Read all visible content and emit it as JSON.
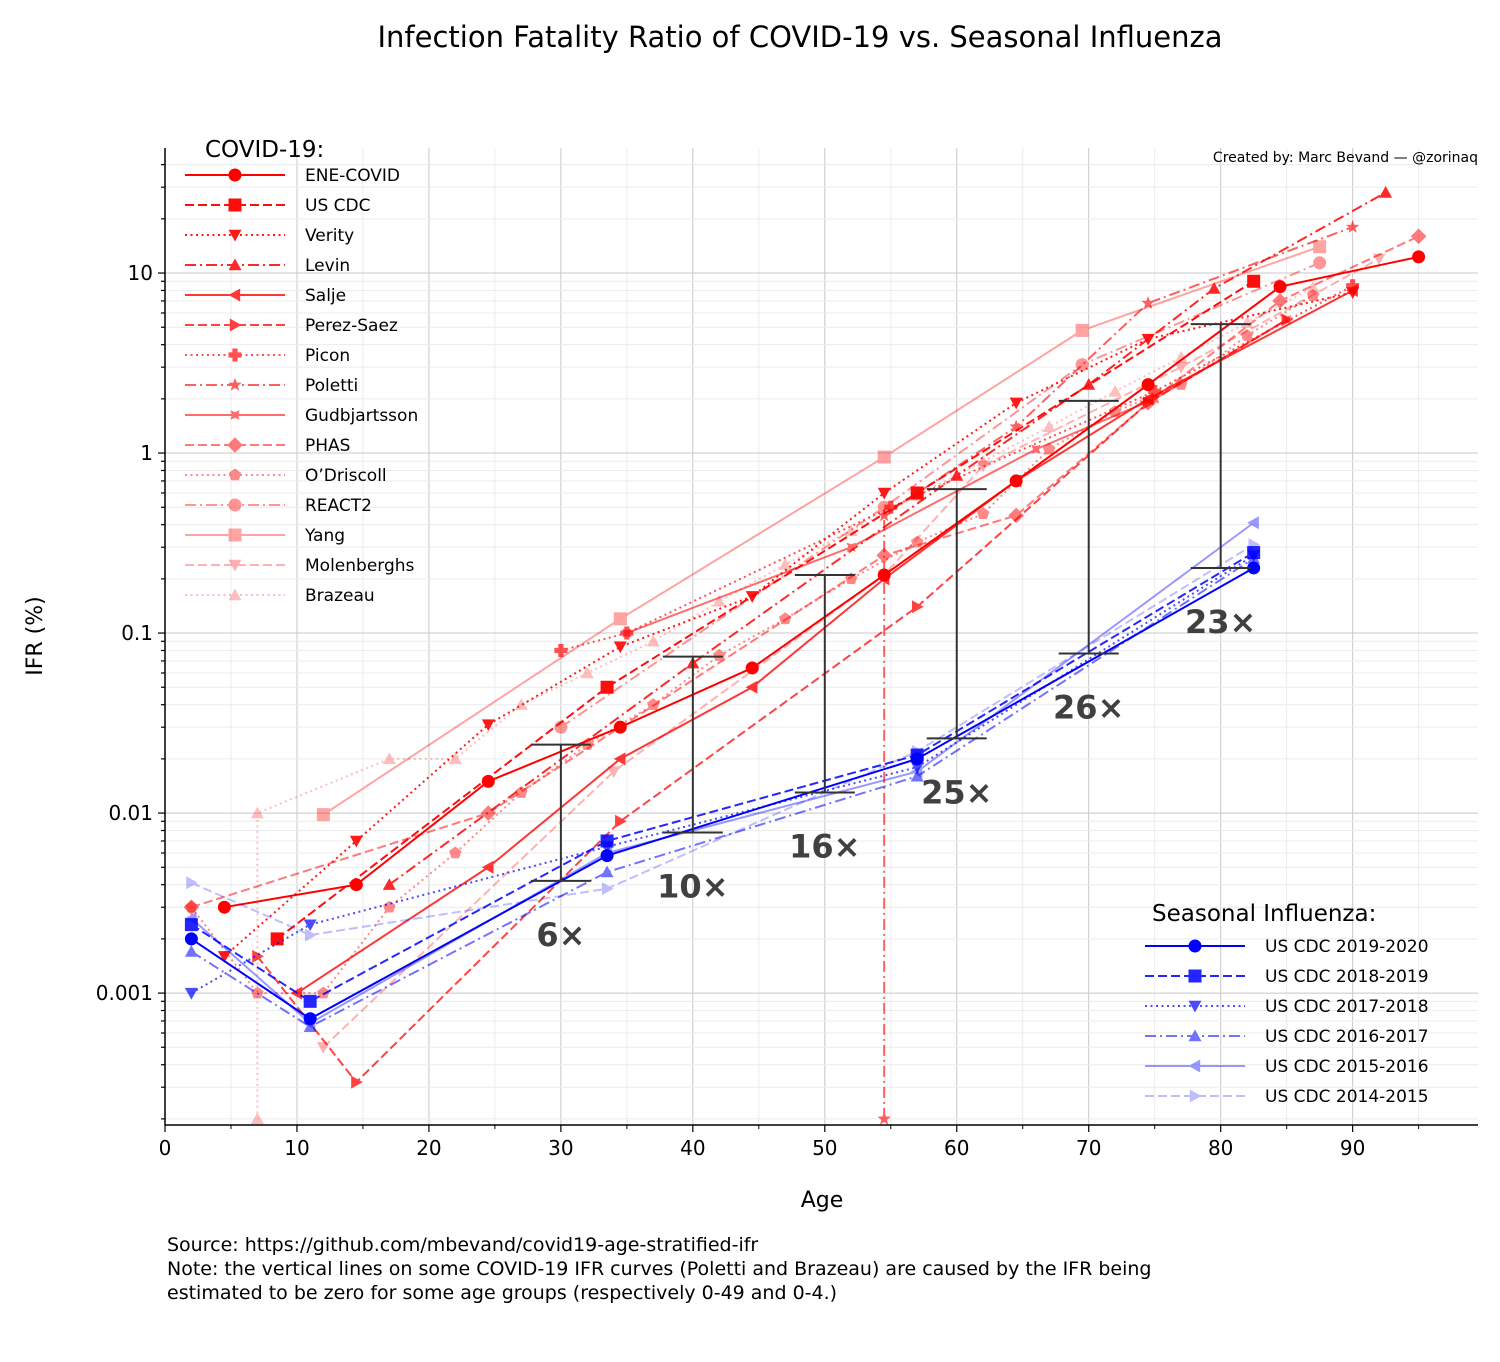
{
  "chart_data": {
    "type": "line",
    "title": "Infection Fatality Ratio of COVID-19 vs. Seasonal Influenza",
    "xlabel": "Age",
    "ylabel": "IFR (%)",
    "xlim": [
      0,
      99.5
    ],
    "ylim": [
      0.000185,
      49.5
    ],
    "yscale": "log",
    "xticks": [
      0,
      10,
      20,
      30,
      40,
      50,
      60,
      70,
      80,
      90
    ],
    "yticks": [
      {
        "v": 10,
        "label": "10"
      },
      {
        "v": 1,
        "label": "1"
      },
      {
        "v": 0.1,
        "label": "0.1"
      },
      {
        "v": 0.01,
        "label": "0.01"
      },
      {
        "v": 0.001,
        "label": "0.001"
      }
    ],
    "grid": true,
    "credit": "Created by: Marc Bevand — @zorinaq",
    "covid_legend_title": "COVID-19:",
    "flu_legend_title": "Seasonal Influenza:",
    "covid_color": "#ff0000",
    "flu_color": "#0000ff",
    "ratio_color": "#333333",
    "covid_series": [
      {
        "name": "ENE-COVID",
        "marker": "o",
        "dash": "solid",
        "points": [
          [
            4.5,
            0.003
          ],
          [
            14.5,
            0.004
          ],
          [
            24.5,
            0.015
          ],
          [
            34.5,
            0.03
          ],
          [
            44.5,
            0.064
          ],
          [
            54.5,
            0.21
          ],
          [
            64.5,
            0.7
          ],
          [
            74.5,
            2.4
          ],
          [
            84.5,
            8.4
          ],
          [
            95,
            12.3
          ]
        ]
      },
      {
        "name": "US CDC",
        "marker": "s",
        "dash": "dashed",
        "points": [
          [
            8.5,
            0.002
          ],
          [
            33.5,
            0.05
          ],
          [
            57,
            0.6
          ],
          [
            82.5,
            9
          ]
        ]
      },
      {
        "name": "Verity",
        "marker": "v",
        "dash": "dotted",
        "points": [
          [
            4.5,
            0.0016
          ],
          [
            14.5,
            0.007
          ],
          [
            24.5,
            0.031
          ],
          [
            34.5,
            0.084
          ],
          [
            44.5,
            0.16
          ],
          [
            54.5,
            0.6
          ],
          [
            64.5,
            1.9
          ],
          [
            74.5,
            4.3
          ],
          [
            90,
            7.8
          ]
        ]
      },
      {
        "name": "Levin",
        "marker": "^",
        "dash": "dashdot",
        "points": [
          [
            17,
            0.004
          ],
          [
            40,
            0.068
          ],
          [
            60,
            0.75
          ],
          [
            70,
            2.4
          ],
          [
            79.5,
            8.2
          ],
          [
            92.5,
            28
          ]
        ]
      },
      {
        "name": "Salje",
        "marker": "<",
        "dash": "solid",
        "points": [
          [
            10,
            0.001
          ],
          [
            24.5,
            0.005
          ],
          [
            34.5,
            0.02
          ],
          [
            44.5,
            0.05
          ],
          [
            54.5,
            0.2
          ],
          [
            64.5,
            0.7
          ],
          [
            74.5,
            2
          ],
          [
            90,
            8
          ]
        ]
      },
      {
        "name": "Perez-Saez",
        "marker": ">",
        "dash": "dashed",
        "points": [
          [
            7,
            0.0016
          ],
          [
            14.5,
            0.00032
          ],
          [
            34.5,
            0.009
          ],
          [
            57,
            0.14
          ],
          [
            74.5,
            1.9
          ],
          [
            85,
            5.5
          ]
        ]
      },
      {
        "name": "Picon",
        "marker": "P",
        "dash": "dotted",
        "points": [
          [
            30,
            0.08
          ],
          [
            35,
            0.1
          ],
          [
            55,
            0.5
          ],
          [
            75,
            2.2
          ],
          [
            90,
            8.5
          ]
        ]
      },
      {
        "name": "Poletti",
        "marker": "*",
        "dash": "dashdot",
        "points": [
          [
            54.5,
            0.0002
          ],
          [
            54.5,
            0.45
          ],
          [
            64.5,
            1.4
          ],
          [
            74.5,
            6.8
          ],
          [
            90,
            18
          ]
        ]
      },
      {
        "name": "Gudbjartsson",
        "marker": "X",
        "dash": "solid",
        "points": [
          [
            35,
            0.1
          ],
          [
            52,
            0.3
          ],
          [
            66,
            1.05
          ],
          [
            75,
            2
          ],
          [
            85,
            5.5
          ]
        ]
      },
      {
        "name": "PHAS",
        "marker": "D",
        "dash": "dashed",
        "points": [
          [
            2,
            0.003
          ],
          [
            24.5,
            0.01
          ],
          [
            54.5,
            0.27
          ],
          [
            64.5,
            0.45
          ],
          [
            74.5,
            1.9
          ],
          [
            84.5,
            7
          ],
          [
            95,
            16
          ]
        ]
      },
      {
        "name": "O’Driscoll",
        "marker": "p",
        "dash": "dotted",
        "points": [
          [
            2,
            0.003
          ],
          [
            7,
            0.001
          ],
          [
            12,
            0.001
          ],
          [
            17,
            0.003
          ],
          [
            22,
            0.006
          ],
          [
            27,
            0.013
          ],
          [
            32,
            0.024
          ],
          [
            37,
            0.04
          ],
          [
            42,
            0.075
          ],
          [
            47,
            0.12
          ],
          [
            52,
            0.2
          ],
          [
            57,
            0.32
          ],
          [
            62,
            0.46
          ],
          [
            67,
            1.05
          ],
          [
            72,
            1.7
          ],
          [
            77,
            2.4
          ],
          [
            82,
            4.5
          ],
          [
            87,
            7.5
          ]
        ]
      },
      {
        "name": "REACT2",
        "marker": "o",
        "dash": "dashdot",
        "points": [
          [
            30,
            0.03
          ],
          [
            54.5,
            0.5
          ],
          [
            69.5,
            3.1
          ],
          [
            87.5,
            11.4
          ]
        ]
      },
      {
        "name": "Yang",
        "marker": "s",
        "dash": "solid",
        "points": [
          [
            12,
            0.0098
          ],
          [
            34.5,
            0.12
          ],
          [
            54.5,
            0.95
          ],
          [
            69.5,
            4.8
          ],
          [
            87.5,
            14
          ]
        ]
      },
      {
        "name": "Molenberghs",
        "marker": "v",
        "dash": "dashed",
        "points": [
          [
            12,
            0.0005
          ],
          [
            34,
            0.017
          ],
          [
            54.5,
            0.21
          ],
          [
            62,
            0.85
          ],
          [
            77,
            3
          ],
          [
            92,
            12
          ]
        ]
      },
      {
        "name": "Brazeau",
        "marker": "^",
        "dash": "dotted",
        "points": [
          [
            7,
            0.0002
          ],
          [
            7,
            0.01
          ],
          [
            17,
            0.02
          ],
          [
            22,
            0.02
          ],
          [
            27,
            0.04
          ],
          [
            32,
            0.06
          ],
          [
            37,
            0.09
          ],
          [
            42,
            0.15
          ],
          [
            47,
            0.24
          ],
          [
            52,
            0.37
          ],
          [
            57,
            0.58
          ],
          [
            62,
            0.9
          ],
          [
            67,
            1.4
          ],
          [
            72,
            2.2
          ],
          [
            77,
            3.4
          ],
          [
            82,
            5.3
          ],
          [
            87,
            8.3
          ]
        ]
      }
    ],
    "flu_series": [
      {
        "name": "US CDC 2019-2020",
        "marker": "o",
        "dash": "solid",
        "points": [
          [
            2,
            0.002
          ],
          [
            11,
            0.00072
          ],
          [
            33.5,
            0.0058
          ],
          [
            57,
            0.02
          ],
          [
            82.5,
            0.23
          ]
        ]
      },
      {
        "name": "US CDC 2018-2019",
        "marker": "s",
        "dash": "dashed",
        "points": [
          [
            2,
            0.0024
          ],
          [
            11,
            0.0009
          ],
          [
            33.5,
            0.007
          ],
          [
            57,
            0.021
          ],
          [
            82.5,
            0.28
          ]
        ]
      },
      {
        "name": "US CDC 2017-2018",
        "marker": "v",
        "dash": "dotted",
        "points": [
          [
            2,
            0.001
          ],
          [
            11,
            0.0024
          ],
          [
            33.5,
            0.0065
          ],
          [
            57,
            0.018
          ],
          [
            82.5,
            0.27
          ]
        ]
      },
      {
        "name": "US CDC 2016-2017",
        "marker": "^",
        "dash": "dashdot",
        "points": [
          [
            2,
            0.0017
          ],
          [
            11,
            0.00065
          ],
          [
            33.5,
            0.0047
          ],
          [
            57,
            0.016
          ],
          [
            82.5,
            0.26
          ]
        ]
      },
      {
        "name": "US CDC 2015-2016",
        "marker": "<",
        "dash": "solid",
        "points": [
          [
            2,
            0.0026
          ],
          [
            11,
            0.00068
          ],
          [
            33.5,
            0.006
          ],
          [
            57,
            0.017
          ],
          [
            82.5,
            0.41
          ]
        ]
      },
      {
        "name": "US CDC 2014-2015",
        "marker": ">",
        "dash": "dashed",
        "points": [
          [
            2,
            0.0041
          ],
          [
            11,
            0.0021
          ],
          [
            33.5,
            0.0038
          ],
          [
            57,
            0.022
          ],
          [
            82.5,
            0.31
          ]
        ]
      }
    ],
    "ratios": [
      {
        "age": 30,
        "covid": 0.024,
        "flu": 0.0042,
        "label": "6×"
      },
      {
        "age": 40,
        "covid": 0.074,
        "flu": 0.0078,
        "label": "10×"
      },
      {
        "age": 50,
        "covid": 0.21,
        "flu": 0.013,
        "label": "16×"
      },
      {
        "age": 60,
        "covid": 0.63,
        "flu": 0.026,
        "label": "25×"
      },
      {
        "age": 70,
        "covid": 1.95,
        "flu": 0.077,
        "label": "26×"
      },
      {
        "age": 80,
        "covid": 5.2,
        "flu": 0.23,
        "label": "23×"
      }
    ]
  },
  "footer": {
    "source": "Source: https://github.com/mbevand/covid19-age-stratified-ifr",
    "note1": "Note: the vertical lines on some COVID-19 IFR curves (Poletti and Brazeau) are caused by the IFR being",
    "note2": "estimated to be zero for some age groups (respectively 0-49 and 0-4.)"
  }
}
